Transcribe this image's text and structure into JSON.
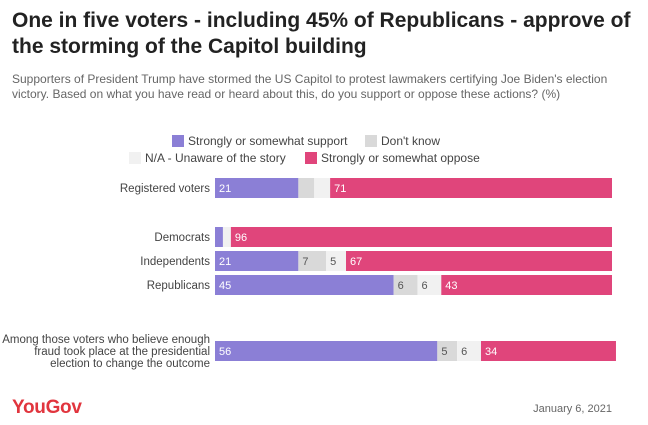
{
  "title": "One in five voters - including 45% of Republicans - approve of the storming of the Capitol building",
  "subtitle": "Supporters of President Trump have stormed the US Capitol to protest lawmakers certifying Joe Biden's election victory. Based on what you have read or heard about this, do you support or oppose these actions? (%)",
  "footer": {
    "logo": "YouGov",
    "date": "January 6, 2021"
  },
  "colors": {
    "support": "#8b7fd6",
    "dont_know": "#d9d9d9",
    "unaware": "#f1f1f1",
    "oppose": "#e0457b"
  },
  "chart_data": {
    "type": "bar",
    "orientation": "horizontal",
    "stacked": true,
    "xlim": [
      0,
      100
    ],
    "categories": [
      "Registered voters",
      "Democrats",
      "Independents",
      "Republicans",
      "Among those voters who believe enough fraud took place at the presidential election to change the outcome"
    ],
    "series": [
      {
        "name": "Strongly or somewhat support",
        "values": [
          21,
          2,
          21,
          45,
          56
        ],
        "labels": [
          "21",
          "",
          "21",
          "45",
          "56"
        ]
      },
      {
        "name": "Don't know",
        "values": [
          4,
          0,
          7,
          6,
          5
        ],
        "labels": [
          "",
          "",
          "7",
          "6",
          "5"
        ]
      },
      {
        "name": "N/A - Unaware of the story",
        "values": [
          4,
          2,
          5,
          6,
          6
        ],
        "labels": [
          "",
          "",
          "5",
          "6",
          "6"
        ]
      },
      {
        "name": "Strongly or somewhat oppose",
        "values": [
          71,
          96,
          67,
          43,
          34
        ],
        "labels": [
          "71",
          "96",
          "67",
          "43",
          "34"
        ]
      }
    ]
  }
}
